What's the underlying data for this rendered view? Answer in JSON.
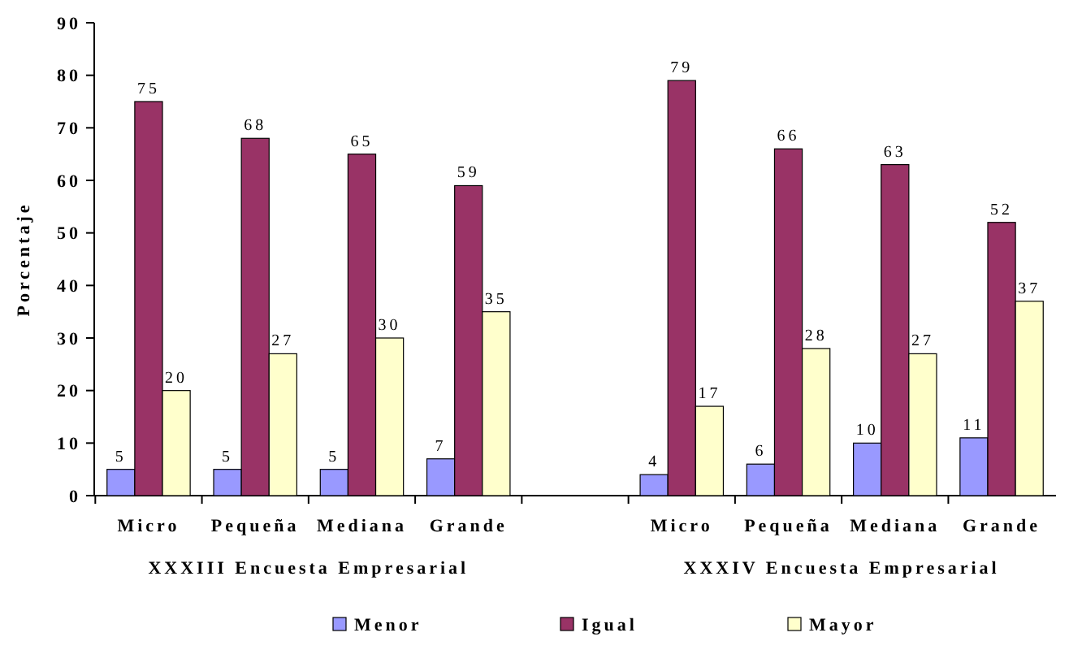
{
  "chart_data": {
    "type": "bar",
    "ylabel": "Porcentaje",
    "categories": [
      "Micro",
      "Pequeña",
      "Mediana",
      "Grande",
      null,
      "Micro",
      "Pequeña",
      "Mediana",
      "Grande"
    ],
    "series": [
      {
        "name": "Menor",
        "color": "#9999ff",
        "values": [
          5,
          5,
          5,
          7,
          null,
          4,
          6,
          10,
          11
        ]
      },
      {
        "name": "Igual",
        "color": "#993366",
        "values": [
          75,
          68,
          65,
          59,
          null,
          79,
          66,
          63,
          52
        ]
      },
      {
        "name": "Mayor",
        "color": "#ffffcc",
        "values": [
          20,
          27,
          30,
          35,
          null,
          17,
          28,
          27,
          37
        ]
      }
    ],
    "annotations": [
      "XXXIII Encuesta Empresarial",
      "XXXIV Encuesta Empresarial"
    ],
    "ylim": [
      0,
      90
    ],
    "yticks": [
      0,
      10,
      20,
      30,
      40,
      50,
      60,
      70,
      80,
      90
    ],
    "data_labels": true,
    "legend": "bottom"
  }
}
